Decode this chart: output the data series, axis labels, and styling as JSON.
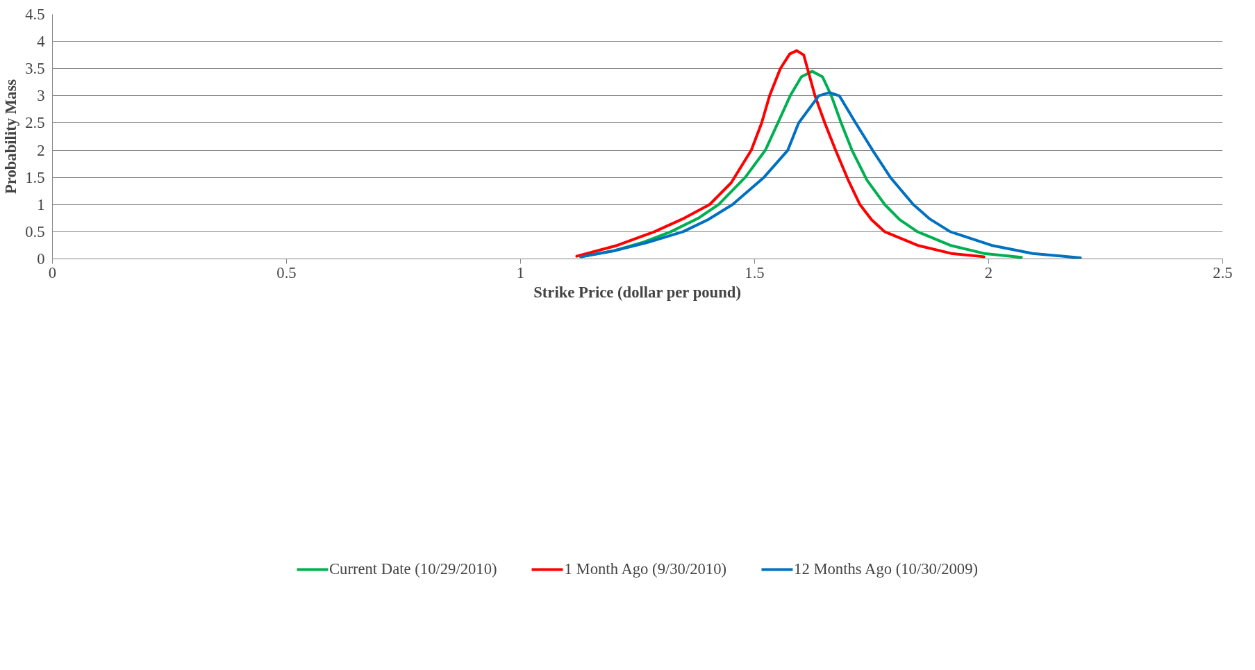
{
  "chart_data": {
    "type": "line",
    "xlabel": "Strike Price (dollar per pound)",
    "ylabel": "Probability Mass",
    "xlim": [
      0,
      2.5
    ],
    "xticks": [
      0,
      0.5,
      1,
      1.5,
      2,
      2.5
    ],
    "ylim": [
      0,
      4.5
    ],
    "yticks": [
      0,
      0.5,
      1,
      1.5,
      2,
      2.5,
      3,
      3.5,
      4,
      4.5
    ],
    "grid": "y",
    "legend": "bottom",
    "marker": "none",
    "line_style": "solid",
    "series": [
      {
        "name": "Current Date (10/29/2010)",
        "color": "#00b050",
        "x": [
          1.128,
          1.2,
          1.26,
          1.321,
          1.38,
          1.423,
          1.48,
          1.523,
          1.555,
          1.576,
          1.6,
          1.623,
          1.645,
          1.664,
          1.685,
          1.708,
          1.74,
          1.778,
          1.81,
          1.848,
          1.918,
          1.99,
          2.07
        ],
        "values": [
          0.04,
          0.15,
          0.3,
          0.5,
          0.75,
          1,
          1.5,
          2,
          2.6,
          3,
          3.35,
          3.45,
          3.35,
          3,
          2.5,
          2,
          1.45,
          1,
          0.72,
          0.5,
          0.25,
          0.1,
          0.03
        ]
      },
      {
        "name": "1 Month Ago (9/30/2010)",
        "color": "#ff0000",
        "x": [
          1.12,
          1.207,
          1.286,
          1.35,
          1.404,
          1.45,
          1.493,
          1.515,
          1.532,
          1.555,
          1.575,
          1.59,
          1.605,
          1.629,
          1.65,
          1.673,
          1.7,
          1.725,
          1.75,
          1.778,
          1.848,
          1.92,
          1.99
        ],
        "values": [
          0.05,
          0.25,
          0.5,
          0.75,
          1,
          1.4,
          2,
          2.5,
          3,
          3.5,
          3.77,
          3.83,
          3.75,
          3,
          2.5,
          2,
          1.45,
          1,
          0.72,
          0.5,
          0.25,
          0.1,
          0.04
        ]
      },
      {
        "name": "12 Months Ago (10/30/2009)",
        "color": "#0070c0",
        "x": [
          1.131,
          1.2,
          1.27,
          1.347,
          1.4,
          1.453,
          1.52,
          1.571,
          1.594,
          1.637,
          1.66,
          1.681,
          1.716,
          1.752,
          1.79,
          1.839,
          1.875,
          1.918,
          2.006,
          2.094,
          2.196
        ],
        "values": [
          0.04,
          0.15,
          0.3,
          0.5,
          0.72,
          1,
          1.5,
          2,
          2.5,
          3,
          3.06,
          3,
          2.5,
          2,
          1.5,
          1,
          0.73,
          0.5,
          0.25,
          0.1,
          0.02
        ]
      }
    ]
  }
}
